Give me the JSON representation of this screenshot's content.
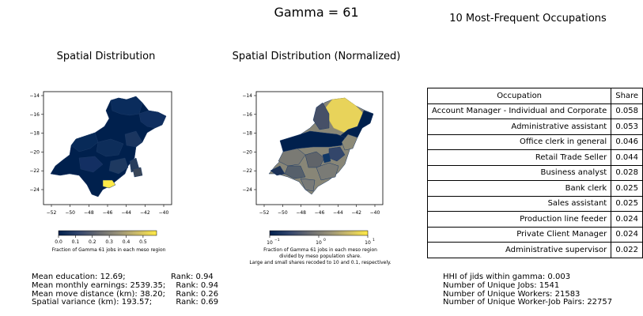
{
  "figure": {
    "suptitle": "Gamma = 61"
  },
  "map_raw": {
    "title": "Spatial Distribution",
    "x_ticks": [
      "−52",
      "−50",
      "−48",
      "−46",
      "−44",
      "−42",
      "−40"
    ],
    "y_ticks": [
      "−14",
      "−16",
      "−18",
      "−20",
      "−22",
      "−24"
    ],
    "colorbar_ticks": [
      "0.0",
      "0.1",
      "0.2",
      "0.3",
      "0.4",
      "0.5"
    ],
    "colorbar_label": "Fraction of Gamma 61 jobs in each meso region",
    "colormap": [
      "#00204d",
      "#31446b",
      "#666970",
      "#958f78",
      "#cbba69",
      "#ffea46"
    ]
  },
  "map_norm": {
    "title": "Spatial Distribution (Normalized)",
    "x_ticks": [
      "−52",
      "−50",
      "−48",
      "−46",
      "−44",
      "−42",
      "−40"
    ],
    "y_ticks": [
      "−14",
      "−16",
      "−18",
      "−20",
      "−22",
      "−24"
    ],
    "colorbar_ticks": [
      "10",
      "10",
      "10"
    ],
    "colorbar_tick_exponents": [
      "−1",
      "0",
      "1"
    ],
    "colorbar_label_lines": [
      "Fraction of Gamma 61 jobs in each meso region",
      "divided by meso population share.",
      "Large and small shares recoded to 10 and 0.1, respectively."
    ]
  },
  "occupations": {
    "title": "10 Most-Frequent Occupations",
    "header": {
      "occupation": "Occupation",
      "share": "Share"
    },
    "rows": [
      {
        "occupation": "Account Manager - Individual and Corporate",
        "share": "0.058"
      },
      {
        "occupation": "Administrative assistant",
        "share": "0.053"
      },
      {
        "occupation": "Office clerk in general",
        "share": "0.046"
      },
      {
        "occupation": "Retail Trade Seller",
        "share": "0.044"
      },
      {
        "occupation": "Business analyst",
        "share": "0.028"
      },
      {
        "occupation": "Bank clerk",
        "share": "0.025"
      },
      {
        "occupation": "Sales assistant",
        "share": "0.025"
      },
      {
        "occupation": "Production line feeder",
        "share": "0.024"
      },
      {
        "occupation": "Private Client Manager",
        "share": "0.024"
      },
      {
        "occupation": "Administrative supervisor",
        "share": "0.022"
      }
    ]
  },
  "stats_left": [
    {
      "label": "Mean education: 12.69;",
      "rank": "Rank: 0.94"
    },
    {
      "label": "Mean monthly earnings: 2539.35;",
      "rank": "  Rank: 0.94"
    },
    {
      "label": "Mean move distance (km): 38.20;",
      "rank": "  Rank: 0.26"
    },
    {
      "label": "Spatial variance (km): 193.57;",
      "rank": "  Rank: 0.69"
    }
  ],
  "stats_right": [
    "HHI of jids within gamma: 0.003",
    "Number of Unique Jobs: 1541",
    "Number of Unique Workers: 21583",
    "Number of Unique Worker-Job Pairs: 22757"
  ],
  "chart_data": [
    {
      "type": "choropleth",
      "title": "Spatial Distribution",
      "xlim": [
        -53.5,
        -39.3
      ],
      "ylim": [
        -25.8,
        -13.5
      ],
      "color_scale": {
        "min": 0.0,
        "max": 0.58,
        "ticks": [
          0.0,
          0.1,
          0.2,
          0.3,
          0.4,
          0.5
        ]
      },
      "regions": [
        {
          "color": "#00204d"
        },
        {
          "color": "#062a55"
        },
        {
          "color": "#0a2c5c"
        },
        {
          "color": "#102f60"
        },
        {
          "color": "#082a58"
        },
        {
          "color": "#1a355f"
        },
        {
          "color": "#0d2d5a"
        },
        {
          "color": "#132f62"
        },
        {
          "color": "#1e3960"
        },
        {
          "color": "#283d5c"
        },
        {
          "color": "#3a4658"
        },
        {
          "color": "#ffea46"
        }
      ]
    },
    {
      "type": "choropleth",
      "title": "Spatial Distribution (Normalized)",
      "scale": "log",
      "xlim": [
        -53.5,
        -39.3
      ],
      "ylim": [
        -25.8,
        -13.5
      ],
      "color_scale": {
        "min": 0.1,
        "max": 10,
        "ticks": [
          0.1,
          1,
          10
        ]
      },
      "regions": [
        {
          "color": "#e8d35a"
        },
        {
          "color": "#465067"
        },
        {
          "color": "#00204d"
        },
        {
          "color": "#00204d"
        },
        {
          "color": "#7a7a74"
        },
        {
          "color": "#606469"
        },
        {
          "color": "#8c8a78"
        },
        {
          "color": "#33466a"
        },
        {
          "color": "#7a7b76"
        },
        {
          "color": "#56606b"
        },
        {
          "color": "#787a78"
        },
        {
          "color": "#888677"
        },
        {
          "color": "#1c3257"
        },
        {
          "color": "#0f3766"
        }
      ]
    }
  ]
}
